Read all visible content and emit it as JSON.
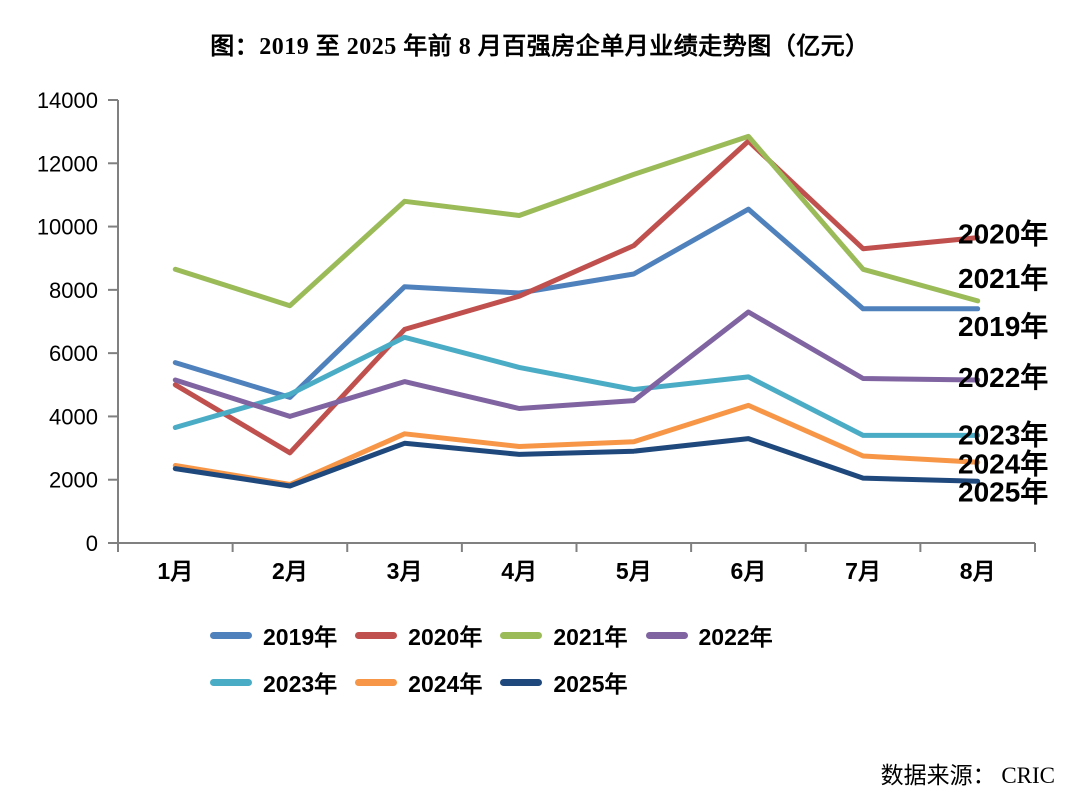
{
  "page": {
    "title": "图：2019 至 2025 年前 8 月百强房企单月业绩走势图（亿元）",
    "source": "数据来源： CRIC"
  },
  "chart_data": {
    "type": "line",
    "title": "图：2019 至 2025 年前 8 月百强房企单月业绩走势图（亿元）",
    "xlabel": "",
    "ylabel": "",
    "unit": "亿元",
    "categories": [
      "1月",
      "2月",
      "3月",
      "4月",
      "5月",
      "6月",
      "7月",
      "8月"
    ],
    "series": [
      {
        "name": "2019年",
        "color": "#4F81BD",
        "values": [
          5700,
          4600,
          8100,
          7900,
          8500,
          10550,
          7400,
          7400
        ]
      },
      {
        "name": "2020年",
        "color": "#C0504D",
        "values": [
          5000,
          2850,
          6750,
          7800,
          9400,
          12700,
          9300,
          9650
        ]
      },
      {
        "name": "2021年",
        "color": "#9BBB59",
        "values": [
          8650,
          7500,
          10800,
          10350,
          11650,
          12850,
          8650,
          7650
        ]
      },
      {
        "name": "2022年",
        "color": "#8064A2",
        "values": [
          5150,
          4000,
          5100,
          4250,
          4500,
          7300,
          5200,
          5150
        ]
      },
      {
        "name": "2023年",
        "color": "#4BACC6",
        "values": [
          3650,
          4700,
          6500,
          5550,
          4850,
          5250,
          3400,
          3400
        ]
      },
      {
        "name": "2024年",
        "color": "#F79646",
        "values": [
          2450,
          1850,
          3450,
          3050,
          3200,
          4350,
          2750,
          2550
        ]
      },
      {
        "name": "2025年",
        "color": "#1F497D",
        "values": [
          2350,
          1800,
          3150,
          2800,
          2900,
          3300,
          2050,
          1950
        ]
      }
    ],
    "ylim": [
      0,
      14000
    ],
    "yticks": [
      0,
      2000,
      4000,
      6000,
      8000,
      10000,
      12000,
      14000
    ],
    "grid": false,
    "legend_position": "bottom",
    "legend_rows": [
      [
        "2019年",
        "2020年",
        "2021年",
        "2022年"
      ],
      [
        "2023年",
        "2024年",
        "2025年"
      ]
    ],
    "direct_end_labels": [
      "2020年",
      "2021年",
      "2019年",
      "2022年",
      "2023年",
      "2024年",
      "2025年"
    ],
    "axis_color": "#808080",
    "tick_label_color": "#000000",
    "source": "数据来源： CRIC"
  }
}
